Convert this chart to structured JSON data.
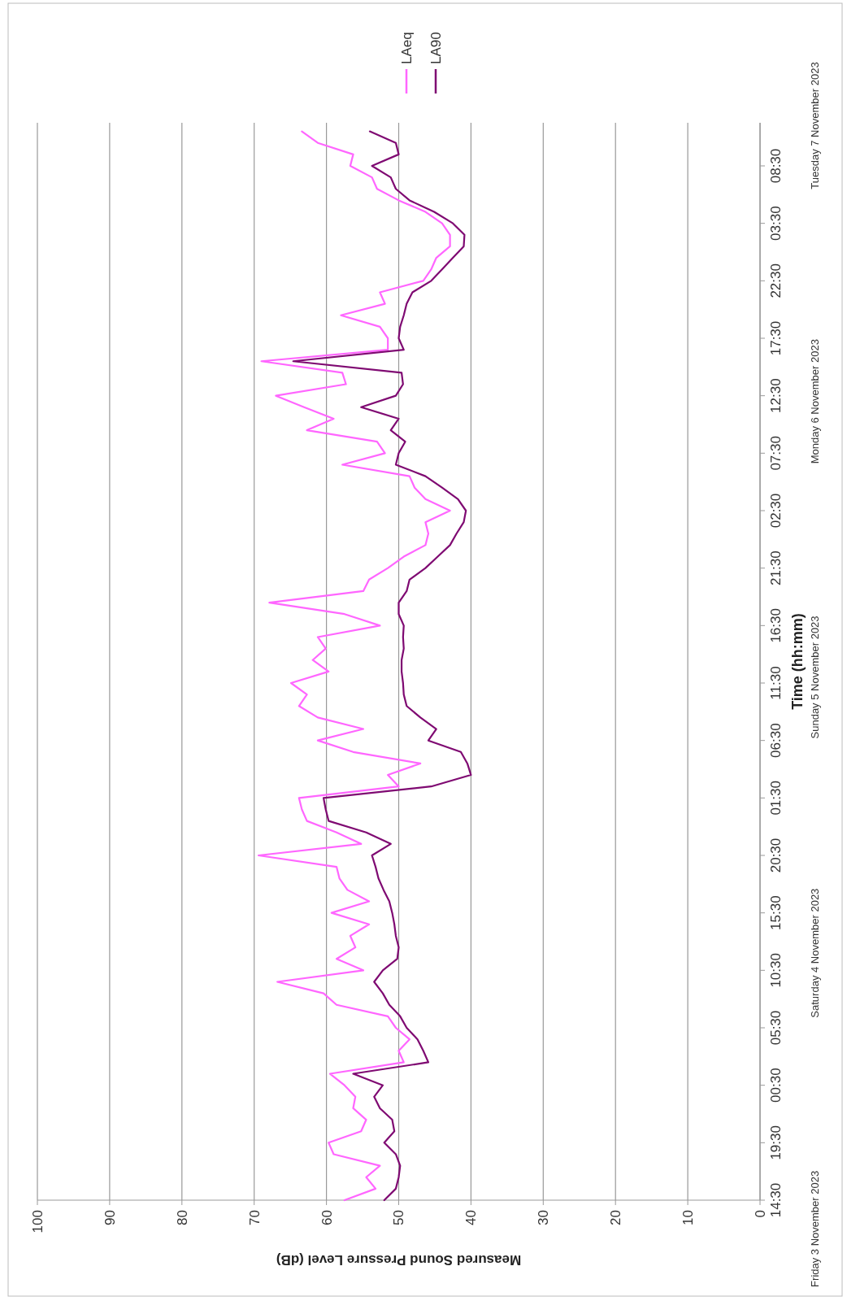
{
  "chart_data": {
    "type": "line",
    "orientation": "horizontal",
    "ylabel": "Time (hh:mm)",
    "xlabel": "Measured Sound Pressure Level (dB)",
    "x": [
      "2023-11-03T14:30",
      "2023-11-03T15:30",
      "2023-11-03T16:30",
      "2023-11-03T17:30",
      "2023-11-03T18:30",
      "2023-11-03T19:30",
      "2023-11-03T20:30",
      "2023-11-03T21:30",
      "2023-11-03T22:30",
      "2023-11-03T23:30",
      "2023-11-04T00:30",
      "2023-11-04T01:30",
      "2023-11-04T02:30",
      "2023-11-04T03:30",
      "2023-11-04T04:30",
      "2023-11-04T05:30",
      "2023-11-04T06:30",
      "2023-11-04T07:30",
      "2023-11-04T08:30",
      "2023-11-04T09:30",
      "2023-11-04T10:30",
      "2023-11-04T11:30",
      "2023-11-04T12:30",
      "2023-11-04T13:30",
      "2023-11-04T14:30",
      "2023-11-04T15:30",
      "2023-11-04T16:30",
      "2023-11-04T17:30",
      "2023-11-04T18:30",
      "2023-11-04T19:30",
      "2023-11-04T20:30",
      "2023-11-04T21:30",
      "2023-11-04T22:30",
      "2023-11-04T23:30",
      "2023-11-05T00:30",
      "2023-11-05T01:30",
      "2023-11-05T02:30",
      "2023-11-05T03:30",
      "2023-11-05T04:30",
      "2023-11-05T05:30",
      "2023-11-05T06:30",
      "2023-11-05T07:30",
      "2023-11-05T08:30",
      "2023-11-05T09:30",
      "2023-11-05T10:30",
      "2023-11-05T11:30",
      "2023-11-05T12:30",
      "2023-11-05T13:30",
      "2023-11-05T14:30",
      "2023-11-05T15:30",
      "2023-11-05T16:30",
      "2023-11-05T17:30",
      "2023-11-05T18:30",
      "2023-11-05T19:30",
      "2023-11-05T20:30",
      "2023-11-05T21:30",
      "2023-11-05T22:30",
      "2023-11-05T23:30",
      "2023-11-06T00:30",
      "2023-11-06T01:30",
      "2023-11-06T02:30",
      "2023-11-06T03:30",
      "2023-11-06T04:30",
      "2023-11-06T05:30",
      "2023-11-06T06:30",
      "2023-11-06T07:30",
      "2023-11-06T08:30",
      "2023-11-06T09:30",
      "2023-11-06T10:30",
      "2023-11-06T11:30",
      "2023-11-06T12:30",
      "2023-11-06T13:30",
      "2023-11-06T14:30",
      "2023-11-06T15:30",
      "2023-11-06T16:30",
      "2023-11-06T17:30",
      "2023-11-06T18:30",
      "2023-11-06T19:30",
      "2023-11-06T20:30",
      "2023-11-06T21:30",
      "2023-11-06T22:30",
      "2023-11-06T23:30",
      "2023-11-07T00:30",
      "2023-11-07T01:30",
      "2023-11-07T02:30",
      "2023-11-07T03:30",
      "2023-11-07T04:30",
      "2023-11-07T05:30",
      "2023-11-07T06:30",
      "2023-11-07T07:30",
      "2023-11-07T08:30",
      "2023-11-07T09:30",
      "2023-11-07T10:30",
      "2023-11-07T11:30"
    ],
    "series": [
      {
        "name": "LAeq",
        "color": "#ff66ff",
        "values": [
          57.5,
          53.2,
          54.5,
          52.6,
          59.0,
          59.7,
          55.2,
          54.5,
          56.3,
          56.0,
          57.5,
          59.5,
          49.3,
          50.0,
          48.5,
          50.4,
          51.5,
          58.6,
          60.4,
          66.8,
          54.9,
          58.6,
          56.0,
          56.7,
          54.1,
          59.3,
          54.1,
          57.1,
          58.2,
          58.6,
          69.4,
          55.2,
          58.6,
          62.7,
          63.4,
          63.8,
          50.0,
          51.5,
          47.0,
          56.3,
          61.2,
          54.9,
          61.2,
          63.8,
          62.7,
          64.9,
          59.7,
          61.9,
          60.1,
          61.2,
          52.6,
          57.5,
          67.9,
          54.9,
          54.1,
          51.5,
          49.3,
          46.3,
          45.9,
          46.3,
          42.9,
          46.3,
          47.8,
          48.5,
          57.8,
          51.9,
          53.0,
          62.7,
          59.0,
          63.1,
          67.0,
          57.3,
          57.8,
          69.0,
          51.5,
          51.5,
          52.6,
          58.0,
          51.9,
          52.6,
          46.6,
          45.5,
          44.8,
          42.9,
          42.9,
          44.0,
          46.3,
          50.0,
          53.0,
          53.7,
          56.7,
          56.3,
          61.2,
          63.4
        ]
      },
      {
        "name": "LA90",
        "color": "#7f0a72",
        "values": [
          52.0,
          50.4,
          50.0,
          49.8,
          50.4,
          52.0,
          50.6,
          50.9,
          52.6,
          53.4,
          52.2,
          56.3,
          45.9,
          46.6,
          47.4,
          48.9,
          49.8,
          51.3,
          52.2,
          53.4,
          52.2,
          50.2,
          50.0,
          50.4,
          50.6,
          50.9,
          51.3,
          52.1,
          52.8,
          53.2,
          53.7,
          51.1,
          54.5,
          59.7,
          60.1,
          60.4,
          45.5,
          40.0,
          40.5,
          41.4,
          45.9,
          44.8,
          47.0,
          48.9,
          49.3,
          49.4,
          49.6,
          49.6,
          49.3,
          49.4,
          49.3,
          50.0,
          50.0,
          48.9,
          48.5,
          46.3,
          44.6,
          42.9,
          42.0,
          41.0,
          40.7,
          41.8,
          44.0,
          46.3,
          50.4,
          50.0,
          49.1,
          51.1,
          50.0,
          55.2,
          50.4,
          49.4,
          49.6,
          64.6,
          49.3,
          50.0,
          49.8,
          49.3,
          48.9,
          48.1,
          45.5,
          44.0,
          42.5,
          41.0,
          40.9,
          42.5,
          45.1,
          48.5,
          50.4,
          51.1,
          53.7,
          50.0,
          50.4,
          54.0
        ]
      }
    ],
    "ylim": [
      "2023-11-03T14:30",
      "2023-11-07T12:15"
    ],
    "yticks": [
      {
        "value": "2023-11-03T14:30",
        "label": "14:30"
      },
      {
        "value": "2023-11-03T19:30",
        "label": "19:30"
      },
      {
        "value": "2023-11-04T00:30",
        "label": "00:30"
      },
      {
        "value": "2023-11-04T05:30",
        "label": "05:30"
      },
      {
        "value": "2023-11-04T10:30",
        "label": "10:30"
      },
      {
        "value": "2023-11-04T15:30",
        "label": "15:30"
      },
      {
        "value": "2023-11-04T20:30",
        "label": "20:30"
      },
      {
        "value": "2023-11-05T01:30",
        "label": "01:30"
      },
      {
        "value": "2023-11-05T06:30",
        "label": "06:30"
      },
      {
        "value": "2023-11-05T11:30",
        "label": "11:30"
      },
      {
        "value": "2023-11-05T16:30",
        "label": "16:30"
      },
      {
        "value": "2023-11-05T21:30",
        "label": "21:30"
      },
      {
        "value": "2023-11-06T02:30",
        "label": "02:30"
      },
      {
        "value": "2023-11-06T07:30",
        "label": "07:30"
      },
      {
        "value": "2023-11-06T12:30",
        "label": "12:30"
      },
      {
        "value": "2023-11-06T17:30",
        "label": "17:30"
      },
      {
        "value": "2023-11-06T22:30",
        "label": "22:30"
      },
      {
        "value": "2023-11-07T03:30",
        "label": "03:30"
      },
      {
        "value": "2023-11-07T08:30",
        "label": "08:30"
      }
    ],
    "xlim": [
      100,
      0
    ],
    "xticks": [
      100,
      90,
      80,
      70,
      60,
      50,
      40,
      30,
      20,
      10,
      0
    ],
    "grid": "x",
    "legend": "top right",
    "marker": "none",
    "line_style": "solid",
    "annotations": [
      "Friday 3 November  2023",
      "Saturday 4 November  2023",
      "Sunday 5 November  2023",
      "Monday 6 November  2023",
      "Tuesday 7 November  2023"
    ]
  }
}
